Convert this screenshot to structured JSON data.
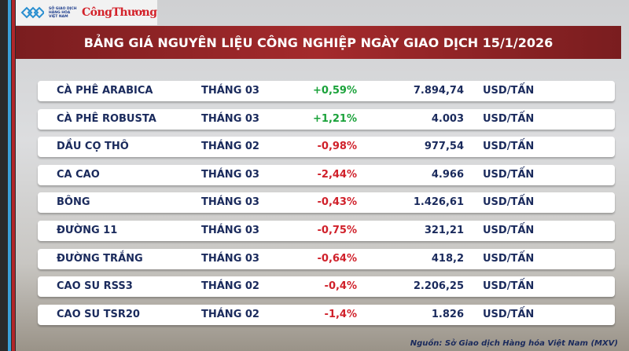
{
  "header": {
    "logo1": "SỞ GIAO DỊCH HÀNG HÓA VIỆT NAM",
    "logo2": "CôngThương",
    "title": "BẢNG GIÁ NGUYÊN LIỆU CÔNG NGHIỆP NGÀY GIAO DỊCH 15/1/2026"
  },
  "colors": {
    "positive": "#1aa23a",
    "negative": "#d0202a",
    "banner": "#a42a2c"
  },
  "rows": [
    {
      "name": "CÀ PHÊ ARABICA",
      "month": "THÁNG 03",
      "change": "+0,59%",
      "price": "7.894,74",
      "unit": "USD/TẤN"
    },
    {
      "name": "CÀ PHÊ ROBUSTA",
      "month": "THÁNG 03",
      "change": "+1,21%",
      "price": "4.003",
      "unit": "USD/TẤN"
    },
    {
      "name": "DẦU CỌ THÔ",
      "month": "THÁNG 02",
      "change": "-0,98%",
      "price": "977,54",
      "unit": "USD/TẤN"
    },
    {
      "name": "CA CAO",
      "month": "THÁNG 03",
      "change": "-2,44%",
      "price": "4.966",
      "unit": "USD/TẤN"
    },
    {
      "name": "BÔNG",
      "month": "THÁNG 03",
      "change": "-0,43%",
      "price": "1.426,61",
      "unit": "USD/TẤN"
    },
    {
      "name": "ĐƯỜNG 11",
      "month": "THÁNG 03",
      "change": "-0,75%",
      "price": "321,21",
      "unit": "USD/TẤN"
    },
    {
      "name": "ĐƯỜNG TRẮNG",
      "month": "THÁNG 03",
      "change": "-0,64%",
      "price": "418,2",
      "unit": "USD/TẤN"
    },
    {
      "name": "CAO SU RSS3",
      "month": "THÁNG 02",
      "change": "-0,4%",
      "price": "2.206,25",
      "unit": "USD/TẤN"
    },
    {
      "name": "CAO SU TSR20",
      "month": "THÁNG 02",
      "change": "-1,4%",
      "price": "1.826",
      "unit": "USD/TẤN"
    }
  ],
  "source": "Nguồn: Sở Giao dịch Hàng hóa Việt Nam (MXV)"
}
